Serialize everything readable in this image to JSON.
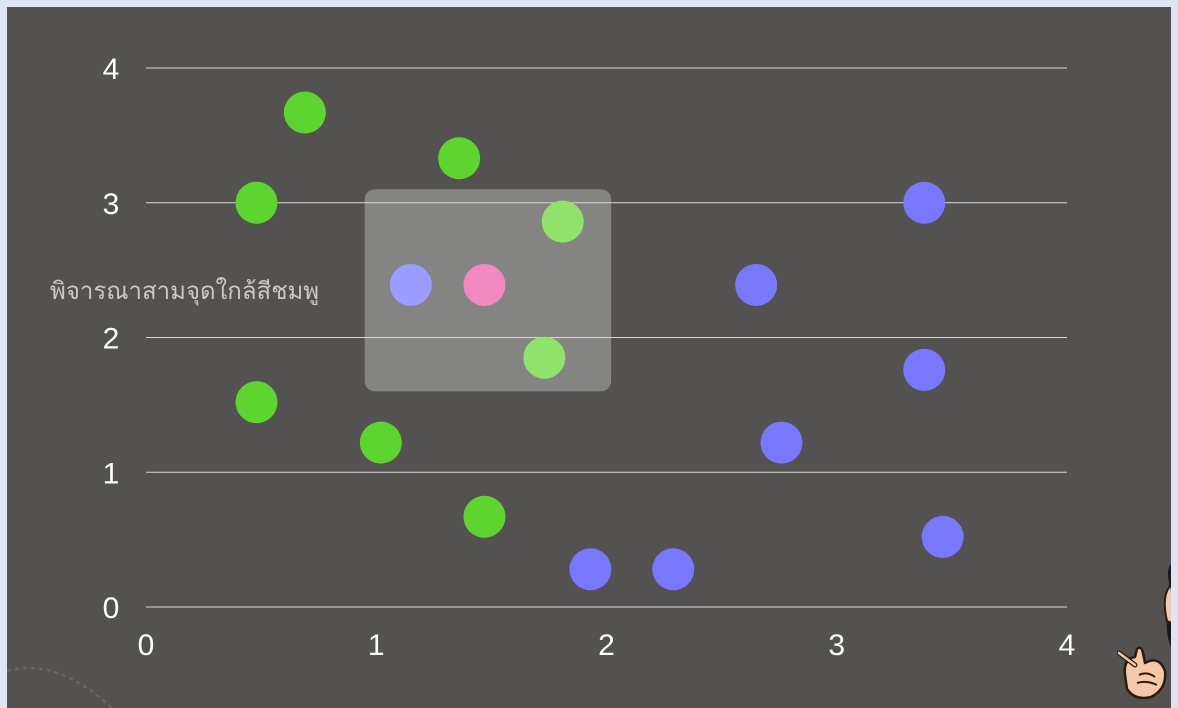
{
  "annotation": "พิจารณาสามจุดใกล้สีชมพู",
  "colors": {
    "background": "#545250",
    "page": "#dfe4f5",
    "gridline": "#d8d8d8",
    "tick_text": "#ffffff",
    "green": "#5cd62f",
    "light_green": "#8fe36b",
    "blue": "#7878ff",
    "light_blue": "#9a9cff",
    "pink": "#f18ac0",
    "highlight_box": "#8a8a88"
  },
  "chart_data": {
    "type": "scatter",
    "title": "",
    "xlabel": "",
    "ylabel": "",
    "xlim": [
      0,
      4
    ],
    "ylim": [
      0,
      4
    ],
    "x_ticks": [
      "0",
      "1",
      "2",
      "3",
      "4"
    ],
    "y_ticks": [
      "0",
      "1",
      "2",
      "3",
      "4"
    ],
    "grid": "horizontal",
    "highlight_region": {
      "x": [
        0.95,
        2.02
      ],
      "y": [
        1.6,
        3.1
      ]
    },
    "series": [
      {
        "color": "green",
        "points": [
          {
            "x": 0.69,
            "y": 3.67
          },
          {
            "x": 0.48,
            "y": 3.0
          },
          {
            "x": 1.36,
            "y": 3.33
          },
          {
            "x": 0.48,
            "y": 1.52
          },
          {
            "x": 1.02,
            "y": 1.22
          },
          {
            "x": 1.47,
            "y": 0.67
          }
        ]
      },
      {
        "color": "light_green",
        "points": [
          {
            "x": 1.81,
            "y": 2.86
          },
          {
            "x": 1.73,
            "y": 1.85
          }
        ]
      },
      {
        "color": "blue",
        "points": [
          {
            "x": 3.38,
            "y": 3.0
          },
          {
            "x": 2.65,
            "y": 2.39
          },
          {
            "x": 3.38,
            "y": 1.76
          },
          {
            "x": 2.76,
            "y": 1.22
          },
          {
            "x": 3.46,
            "y": 0.52
          },
          {
            "x": 1.93,
            "y": 0.28
          },
          {
            "x": 2.29,
            "y": 0.28
          }
        ]
      },
      {
        "color": "light_blue",
        "points": [
          {
            "x": 1.15,
            "y": 2.39
          }
        ]
      },
      {
        "color": "pink",
        "points": [
          {
            "x": 1.47,
            "y": 2.39
          }
        ]
      }
    ]
  }
}
